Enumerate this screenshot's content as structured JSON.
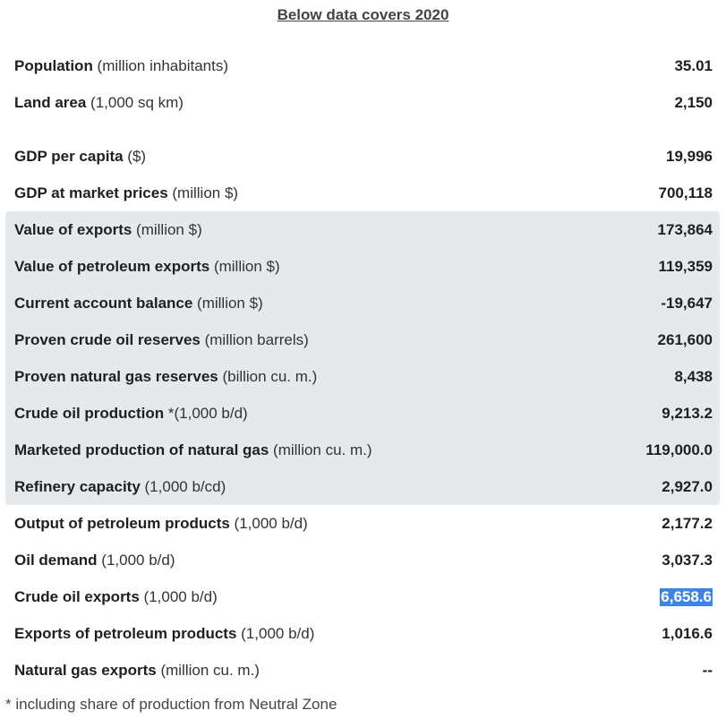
{
  "heading": "Below data covers 2020",
  "rows": [
    {
      "name": "Population",
      "unit": " (million inhabitants)",
      "value": "35.01"
    },
    {
      "name": "Land area",
      "unit": " (1,000 sq km)",
      "value": "2,150"
    },
    {
      "name": "GDP per capita",
      "unit": " ($)",
      "value": "19,996"
    },
    {
      "name": "GDP at market prices",
      "unit": " (million $)",
      "value": "700,118"
    },
    {
      "name": "Value of exports",
      "unit": " (million $)",
      "value": "173,864"
    },
    {
      "name": "Value of petroleum exports",
      "unit": " (million $)",
      "value": "119,359"
    },
    {
      "name": "Current account balance",
      "unit": " (million $)",
      "value": "-19,647"
    },
    {
      "name": "Proven crude oil reserves",
      "unit": " (million barrels)",
      "value": "261,600"
    },
    {
      "name": "Proven natural gas reserves",
      "unit": " (billion cu. m.)",
      "value": "8,438"
    },
    {
      "name": "Crude oil production",
      "unit": " *(1,000 b/d)",
      "value": "9,213.2"
    },
    {
      "name": "Marketed production of natural gas",
      "unit": " (million cu. m.)",
      "value": "119,000.0"
    },
    {
      "name": "Refinery capacity",
      "unit": " (1,000 b/cd)",
      "value": "2,927.0"
    },
    {
      "name": "Output of petroleum products",
      "unit": " (1,000 b/d)",
      "value": "2,177.2"
    },
    {
      "name": "Oil demand",
      "unit": " (1,000 b/d)",
      "value": "3,037.3"
    },
    {
      "name": "Crude oil exports",
      "unit": " (1,000 b/d)",
      "value": "6,658.6"
    },
    {
      "name": "Exports of petroleum products",
      "unit": " (1,000 b/d)",
      "value": "1,016.6"
    },
    {
      "name": "Natural gas exports",
      "unit": " (million cu. m.)",
      "value": "--"
    }
  ],
  "footnote": "* including share of production from Neutral Zone",
  "colors": {
    "shade": "#e6e9ec",
    "selection": "#3d84e6"
  }
}
